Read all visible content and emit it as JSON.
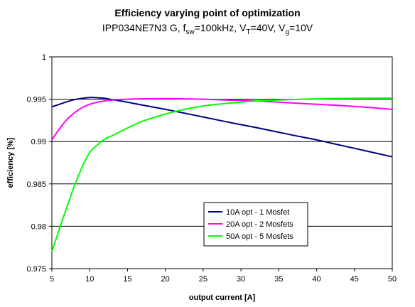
{
  "chart_data": {
    "type": "line",
    "title": "Efficiency varying point of optimization",
    "subtitle": {
      "part1": "IPP034NE7N3 G, f",
      "sub1": "sw",
      "part2": "=100kHz, V",
      "sub2": "T",
      "part3": "=40V, V",
      "sub3": "g",
      "part4": "=10V"
    },
    "xlabel": "output current [A]",
    "ylabel": "efficiency [%]",
    "xlim": [
      5,
      50
    ],
    "ylim": [
      0.975,
      1
    ],
    "xticks": [
      5,
      10,
      15,
      20,
      25,
      30,
      35,
      40,
      45,
      50
    ],
    "yticks": [
      {
        "value": 0.975,
        "label": "0.975"
      },
      {
        "value": 0.98,
        "label": "0.98"
      },
      {
        "value": 0.985,
        "label": "0.985"
      },
      {
        "value": 0.99,
        "label": "0.99"
      },
      {
        "value": 0.995,
        "label": "0.995"
      },
      {
        "value": 1,
        "label": "1"
      }
    ],
    "grid": "horizontal",
    "legend_position": "bottom-center",
    "series": [
      {
        "name": "10A opt - 1 Mosfet",
        "color": "#000080",
        "x": [
          5,
          6,
          7,
          8,
          9,
          10,
          11,
          12,
          13,
          15,
          17,
          20,
          22,
          25,
          28,
          30,
          32,
          35,
          38,
          40,
          42,
          45,
          48,
          50
        ],
        "values": [
          0.9941,
          0.9944,
          0.9947,
          0.99495,
          0.9951,
          0.9952,
          0.99518,
          0.9951,
          0.99495,
          0.99465,
          0.9943,
          0.9938,
          0.99345,
          0.9929,
          0.99235,
          0.992,
          0.99165,
          0.9911,
          0.99055,
          0.9902,
          0.9898,
          0.9892,
          0.9886,
          0.9882
        ]
      },
      {
        "name": "20A opt - 2 Mosfets",
        "color": "#ff00ff",
        "x": [
          5,
          6,
          7,
          8,
          9,
          10,
          11,
          12,
          13,
          14,
          15,
          17,
          20,
          22,
          25,
          28,
          30,
          32,
          35,
          38,
          40,
          42,
          45,
          48,
          50
        ],
        "values": [
          0.9902,
          0.9915,
          0.9926,
          0.9934,
          0.994,
          0.9944,
          0.99465,
          0.9948,
          0.9949,
          0.99497,
          0.995,
          0.99505,
          0.99507,
          0.99505,
          0.995,
          0.9949,
          0.99485,
          0.9948,
          0.99465,
          0.9945,
          0.9944,
          0.9943,
          0.99415,
          0.99395,
          0.9938
        ]
      },
      {
        "name": "50A opt - 5 Mosfets",
        "color": "#00ff00",
        "x": [
          5,
          6,
          7,
          8,
          9,
          10,
          11,
          12,
          13,
          15,
          17,
          20,
          22,
          25,
          28,
          30,
          32,
          35,
          38,
          40,
          42,
          45,
          48,
          50
        ],
        "values": [
          0.977,
          0.9797,
          0.9823,
          0.9848,
          0.987,
          0.9887,
          0.9896,
          0.9903,
          0.9907,
          0.9916,
          0.9924,
          0.99325,
          0.9937,
          0.9942,
          0.9945,
          0.99465,
          0.9948,
          0.9949,
          0.995,
          0.99505,
          0.99508,
          0.9951,
          0.99512,
          0.99512
        ]
      }
    ]
  }
}
